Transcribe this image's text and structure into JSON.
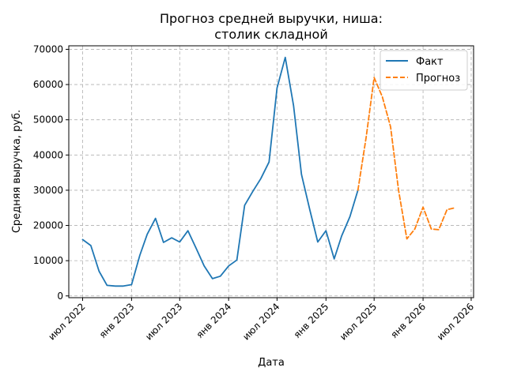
{
  "chart_data": {
    "type": "line",
    "title_line1": "Прогноз средней выручки, ниша:",
    "title_line2": "столик складной",
    "xlabel": "Дата",
    "ylabel": "Средняя выручка, руб.",
    "x_tick_labels": [
      "июл 2022",
      "янв 2023",
      "июл 2023",
      "янв 2024",
      "июл 2024",
      "янв 2025",
      "июл 2025",
      "янв 2026",
      "июл 2026"
    ],
    "y_tick_labels": [
      "0",
      "10000",
      "20000",
      "30000",
      "40000",
      "50000",
      "60000",
      "70000"
    ],
    "ylim": [
      -500,
      71000
    ],
    "xlim": [
      "2022-05-10",
      "2026-07-10"
    ],
    "grid": true,
    "legend_position": "top-right",
    "series": [
      {
        "name": "Факт",
        "color": "#1f77b4",
        "style": "solid",
        "x": [
          "2022-07-01",
          "2022-08-01",
          "2022-09-01",
          "2022-10-01",
          "2022-11-01",
          "2022-12-01",
          "2023-01-01",
          "2023-02-01",
          "2023-03-01",
          "2023-04-01",
          "2023-05-01",
          "2023-06-01",
          "2023-07-01",
          "2023-08-01",
          "2023-09-01",
          "2023-10-01",
          "2023-11-01",
          "2023-12-01",
          "2024-01-01",
          "2024-02-01",
          "2024-03-01",
          "2024-04-01",
          "2024-05-01",
          "2024-06-01",
          "2024-07-01",
          "2024-08-01",
          "2024-09-01",
          "2024-10-01",
          "2024-11-01",
          "2024-12-01",
          "2025-01-01",
          "2025-02-01",
          "2025-03-01",
          "2025-04-01",
          "2025-05-01"
        ],
        "y": [
          16000,
          14300,
          7000,
          3000,
          2800,
          2800,
          3200,
          11500,
          17500,
          22000,
          15200,
          16500,
          15300,
          18500,
          13500,
          8500,
          4900,
          5600,
          8500,
          10200,
          25700,
          29700,
          33300,
          38000,
          59000,
          67700,
          54000,
          34500,
          24500,
          15300,
          18500,
          10500,
          17000,
          22500,
          30000
        ]
      },
      {
        "name": "Прогноз",
        "color": "#ff7f0e",
        "style": "dashed",
        "x": [
          "2025-05-01",
          "2025-06-01",
          "2025-07-01",
          "2025-08-01",
          "2025-09-01",
          "2025-10-01",
          "2025-11-01",
          "2025-12-01",
          "2026-01-01",
          "2026-02-01",
          "2026-03-01",
          "2026-04-01",
          "2026-05-01"
        ],
        "y": [
          30000,
          45000,
          62000,
          56500,
          48000,
          30000,
          16200,
          19000,
          25200,
          19000,
          18800,
          24500,
          25000
        ]
      }
    ]
  }
}
